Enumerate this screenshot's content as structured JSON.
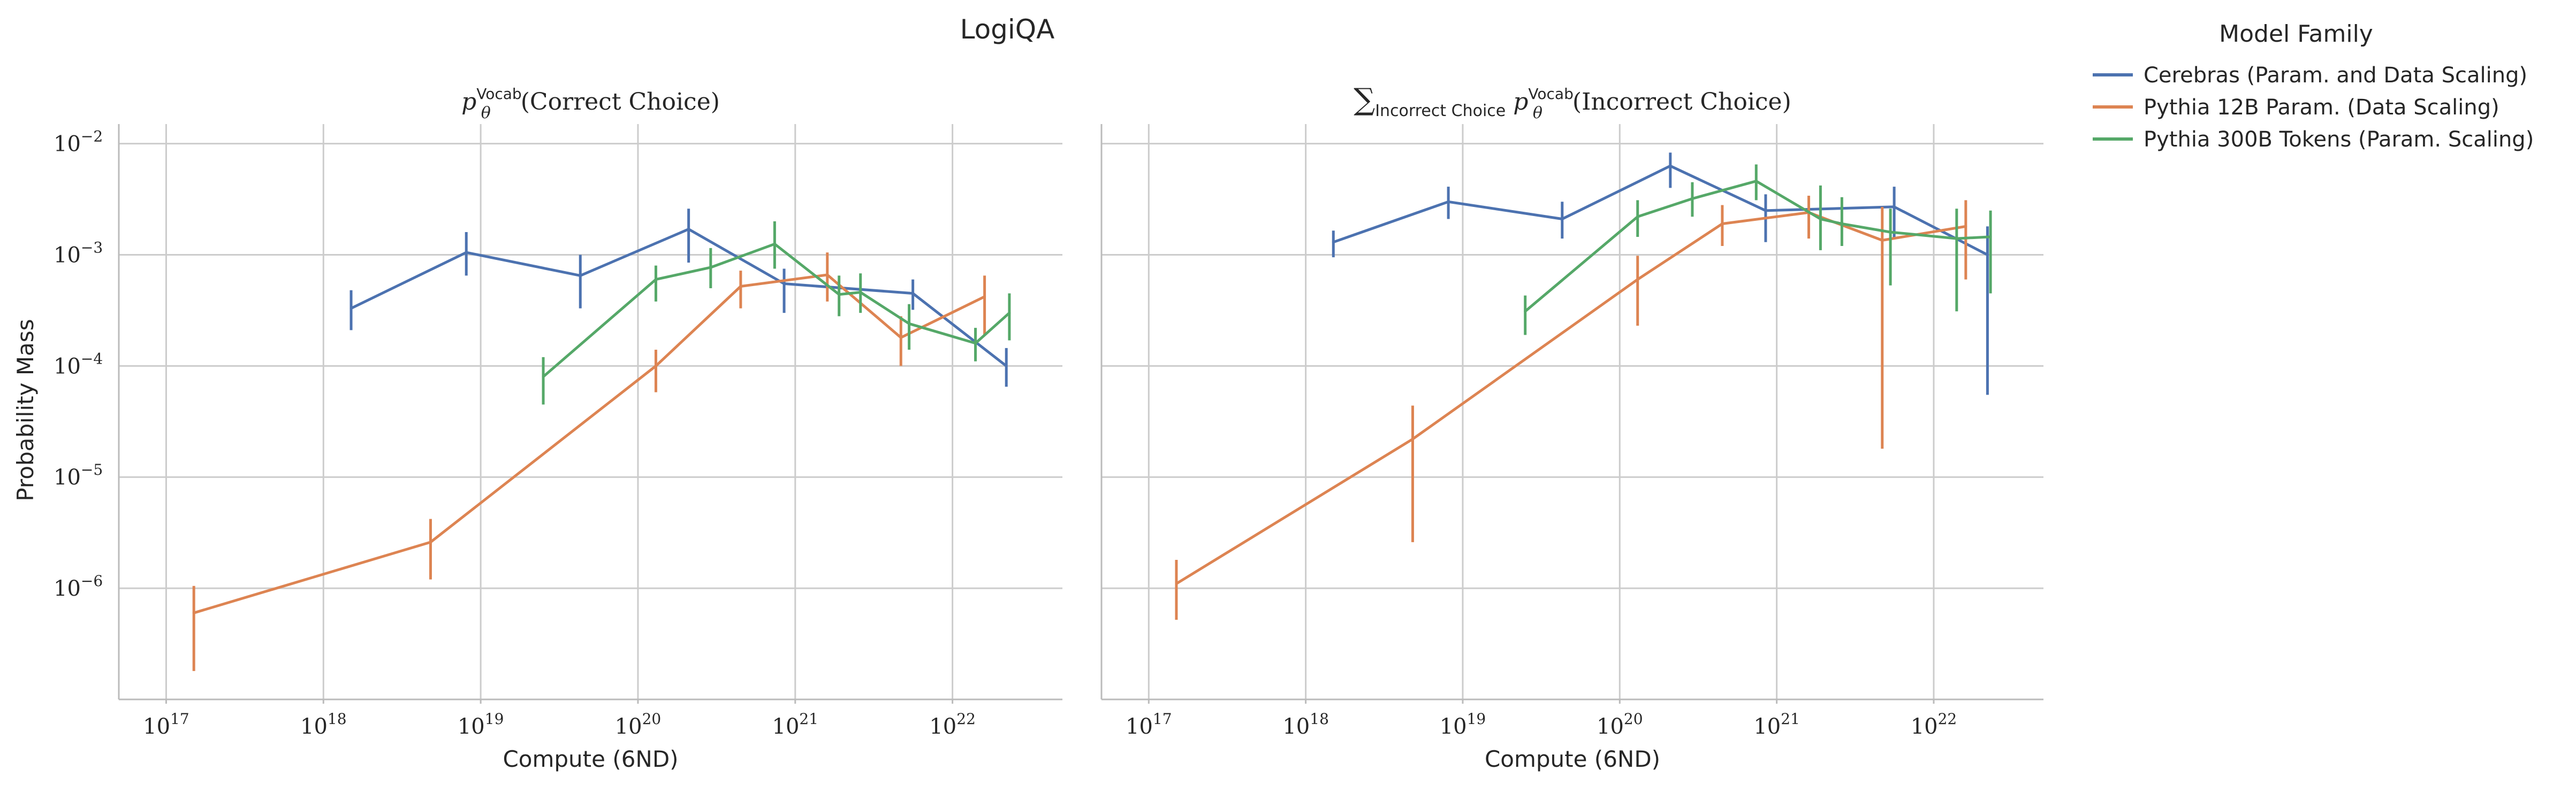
{
  "figure": {
    "title": "LogiQA",
    "ylabel": "Probability Mass",
    "legend": {
      "title": "Model Family",
      "placement": "right, outside"
    }
  },
  "colors": {
    "Cerebras (Param. and Data Scaling)": "#4c72b0",
    "Pythia 12B Param. (Data Scaling)": "#dd8452",
    "Pythia 300B Tokens (Param. Scaling)": "#55a868",
    "grid": "#cccccc",
    "axis": "#bbbbbb"
  },
  "chart_data": [
    {
      "type": "line",
      "title_prefix": "p",
      "title_sub": "θ",
      "title_sup": "Vocab",
      "title_main": "(Correct Choice)",
      "xlabel": "Compute (6ND)",
      "ylabel": "Probability Mass",
      "x_scale": "log",
      "y_scale": "log",
      "xlim": [
        5e+16,
        5e+22
      ],
      "ylim": [
        1e-07,
        0.015
      ],
      "x_ticks": [
        {
          "base": "10",
          "exp": "17",
          "value": 1e+17
        },
        {
          "base": "10",
          "exp": "18",
          "value": 1e+18
        },
        {
          "base": "10",
          "exp": "19",
          "value": 1e+19
        },
        {
          "base": "10",
          "exp": "20",
          "value": 1e+20
        },
        {
          "base": "10",
          "exp": "21",
          "value": 1e+21
        },
        {
          "base": "10",
          "exp": "22",
          "value": 1e+22
        }
      ],
      "y_ticks": [
        {
          "base": "10",
          "exp": "−6",
          "value": 1e-06
        },
        {
          "base": "10",
          "exp": "−5",
          "value": 1e-05
        },
        {
          "base": "10",
          "exp": "−4",
          "value": 0.0001
        },
        {
          "base": "10",
          "exp": "−3",
          "value": 0.001
        },
        {
          "base": "10",
          "exp": "−2",
          "value": 0.01
        }
      ],
      "grid": true,
      "series": [
        {
          "name": "Cerebras (Param. and Data Scaling)",
          "points": [
            {
              "x": 1.5e+18,
              "y": 0.00033,
              "lo": 0.00021,
              "hi": 0.00048
            },
            {
              "x": 8.1e+18,
              "y": 0.00105,
              "lo": 0.00065,
              "hi": 0.0016
            },
            {
              "x": 4.3e+19,
              "y": 0.00065,
              "lo": 0.00033,
              "hi": 0.001
            },
            {
              "x": 2.1e+20,
              "y": 0.0017,
              "lo": 0.00085,
              "hi": 0.0026
            },
            {
              "x": 8.5e+20,
              "y": 0.00055,
              "lo": 0.0003,
              "hi": 0.00075
            },
            {
              "x": 5.6e+21,
              "y": 0.00045,
              "lo": 0.00032,
              "hi": 0.0006
            },
            {
              "x": 2.2e+22,
              "y": 0.0001,
              "lo": 6.5e-05,
              "hi": 0.000145
            }
          ]
        },
        {
          "name": "Pythia 12B Param. (Data Scaling)",
          "points": [
            {
              "x": 1.5e+17,
              "y": 6e-07,
              "lo": 1.8e-07,
              "hi": 1.05e-06
            },
            {
              "x": 4.8e+18,
              "y": 2.6e-06,
              "lo": 1.2e-06,
              "hi": 4.2e-06
            },
            {
              "x": 1.3e+20,
              "y": 0.0001,
              "lo": 5.8e-05,
              "hi": 0.00014
            },
            {
              "x": 4.5e+20,
              "y": 0.00052,
              "lo": 0.00033,
              "hi": 0.00072
            },
            {
              "x": 1.6e+21,
              "y": 0.00066,
              "lo": 0.00038,
              "hi": 0.00105
            },
            {
              "x": 4.7e+21,
              "y": 0.00018,
              "lo": 0.0001,
              "hi": 0.00028
            },
            {
              "x": 1.6e+22,
              "y": 0.00042,
              "lo": 0.00019,
              "hi": 0.00065
            }
          ]
        },
        {
          "name": "Pythia 300B Tokens (Param. Scaling)",
          "points": [
            {
              "x": 2.5e+19,
              "y": 8e-05,
              "lo": 4.5e-05,
              "hi": 0.00012
            },
            {
              "x": 1.3e+20,
              "y": 0.0006,
              "lo": 0.00038,
              "hi": 0.0008
            },
            {
              "x": 2.9e+20,
              "y": 0.00077,
              "lo": 0.0005,
              "hi": 0.00115
            },
            {
              "x": 7.4e+20,
              "y": 0.00125,
              "lo": 0.00075,
              "hi": 0.002
            },
            {
              "x": 1.9e+21,
              "y": 0.00044,
              "lo": 0.00028,
              "hi": 0.00065
            },
            {
              "x": 2.6e+21,
              "y": 0.00046,
              "lo": 0.0003,
              "hi": 0.00068
            },
            {
              "x": 5.3e+21,
              "y": 0.00024,
              "lo": 0.00014,
              "hi": 0.00036
            },
            {
              "x": 1.4e+22,
              "y": 0.00016,
              "lo": 0.00011,
              "hi": 0.00022
            },
            {
              "x": 2.3e+22,
              "y": 0.0003,
              "lo": 0.00017,
              "hi": 0.00045
            }
          ]
        }
      ]
    },
    {
      "type": "line",
      "title_prefix": "∑",
      "title_sum_sub": "Incorrect Choice",
      "title_sub": "θ",
      "title_sup": "Vocab",
      "title_main": "(Incorrect Choice)",
      "xlabel": "Compute (6ND)",
      "x_scale": "log",
      "y_scale": "log",
      "xlim": [
        5e+16,
        5e+22
      ],
      "ylim": [
        1e-07,
        0.015
      ],
      "x_ticks": [
        {
          "base": "10",
          "exp": "17",
          "value": 1e+17
        },
        {
          "base": "10",
          "exp": "18",
          "value": 1e+18
        },
        {
          "base": "10",
          "exp": "19",
          "value": 1e+19
        },
        {
          "base": "10",
          "exp": "20",
          "value": 1e+20
        },
        {
          "base": "10",
          "exp": "21",
          "value": 1e+21
        },
        {
          "base": "10",
          "exp": "22",
          "value": 1e+22
        }
      ],
      "y_ticks_shown": false,
      "grid": true,
      "series": [
        {
          "name": "Cerebras (Param. and Data Scaling)",
          "points": [
            {
              "x": 1.5e+18,
              "y": 0.0013,
              "lo": 0.00095,
              "hi": 0.00165
            },
            {
              "x": 8.1e+18,
              "y": 0.003,
              "lo": 0.0021,
              "hi": 0.0041
            },
            {
              "x": 4.3e+19,
              "y": 0.0021,
              "lo": 0.0014,
              "hi": 0.003
            },
            {
              "x": 2.1e+20,
              "y": 0.0063,
              "lo": 0.004,
              "hi": 0.0083
            },
            {
              "x": 8.5e+20,
              "y": 0.0025,
              "lo": 0.0013,
              "hi": 0.0035
            },
            {
              "x": 5.6e+21,
              "y": 0.0027,
              "lo": 0.0014,
              "hi": 0.0041
            },
            {
              "x": 2.2e+22,
              "y": 0.001,
              "lo": 5.5e-05,
              "hi": 0.0018
            }
          ]
        },
        {
          "name": "Pythia 12B Param. (Data Scaling)",
          "points": [
            {
              "x": 1.5e+17,
              "y": 1.1e-06,
              "lo": 5.2e-07,
              "hi": 1.8e-06
            },
            {
              "x": 4.8e+18,
              "y": 2.2e-05,
              "lo": 2.6e-06,
              "hi": 4.4e-05
            },
            {
              "x": 1.3e+20,
              "y": 0.0006,
              "lo": 0.00023,
              "hi": 0.00098
            },
            {
              "x": 4.5e+20,
              "y": 0.0019,
              "lo": 0.0012,
              "hi": 0.0028
            },
            {
              "x": 1.6e+21,
              "y": 0.0024,
              "lo": 0.0014,
              "hi": 0.0034
            },
            {
              "x": 4.7e+21,
              "y": 0.00135,
              "lo": 1.8e-05,
              "hi": 0.0027
            },
            {
              "x": 1.6e+22,
              "y": 0.0018,
              "lo": 0.0006,
              "hi": 0.0031
            }
          ]
        },
        {
          "name": "Pythia 300B Tokens (Param. Scaling)",
          "points": [
            {
              "x": 2.5e+19,
              "y": 0.00031,
              "lo": 0.00019,
              "hi": 0.00043
            },
            {
              "x": 1.3e+20,
              "y": 0.0022,
              "lo": 0.00145,
              "hi": 0.0031
            },
            {
              "x": 2.9e+20,
              "y": 0.0032,
              "lo": 0.0022,
              "hi": 0.0045
            },
            {
              "x": 7.4e+20,
              "y": 0.0046,
              "lo": 0.0031,
              "hi": 0.0065
            },
            {
              "x": 1.9e+21,
              "y": 0.0021,
              "lo": 0.0011,
              "hi": 0.0042
            },
            {
              "x": 2.6e+21,
              "y": 0.0019,
              "lo": 0.0012,
              "hi": 0.0033
            },
            {
              "x": 5.3e+21,
              "y": 0.0016,
              "lo": 0.00053,
              "hi": 0.0026
            },
            {
              "x": 1.4e+22,
              "y": 0.0014,
              "lo": 0.00031,
              "hi": 0.0026
            },
            {
              "x": 2.3e+22,
              "y": 0.00145,
              "lo": 0.00045,
              "hi": 0.0025
            }
          ]
        }
      ]
    }
  ]
}
